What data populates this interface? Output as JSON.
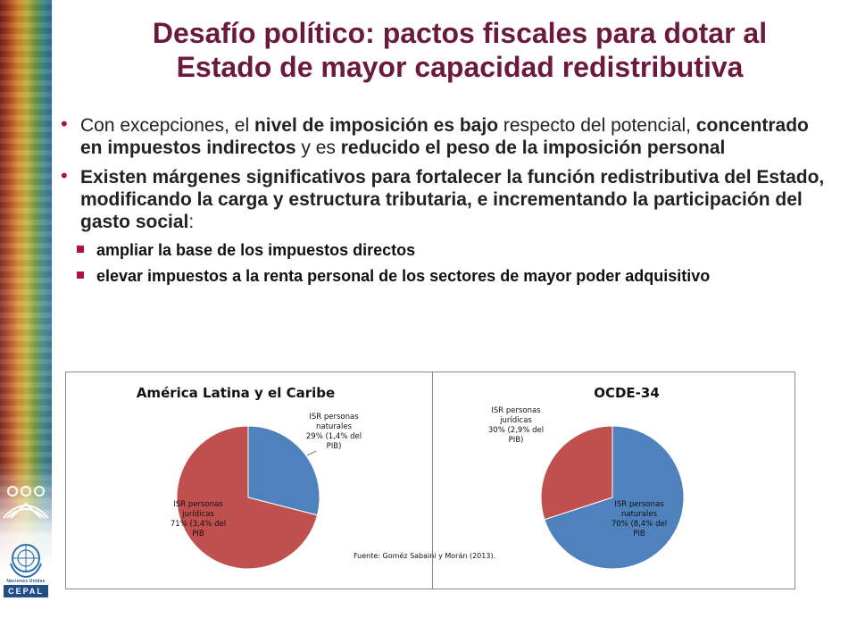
{
  "slide": {
    "title_line1": "Desafío político: pactos fiscales para dotar al",
    "title_line2": "Estado de mayor capacidad redistributiva",
    "bullets": [
      {
        "segments": [
          {
            "text": "Con excepciones, el ",
            "bold": false
          },
          {
            "text": "nivel de imposición es bajo",
            "bold": true
          },
          {
            "text": " respecto del potencial, ",
            "bold": false
          },
          {
            "text": "concentrado en impuestos indirectos",
            "bold": true
          },
          {
            "text": " y es ",
            "bold": false
          },
          {
            "text": "reducido el peso de la imposición personal",
            "bold": true
          }
        ]
      },
      {
        "segments": [
          {
            "text": " Existen márgenes significativos para fortalecer la función redistributiva del Estado, modificando la carga y estructura tributaria, e incrementando la participación del gasto social",
            "bold": true
          },
          {
            "text": ":",
            "bold": false
          }
        ]
      }
    ],
    "subbullets": [
      "ampliar la base de los impuestos directos",
      "elevar impuestos a la renta personal de los sectores de mayor poder adquisitivo"
    ],
    "branding": {
      "un_caption": "Naciones Unidas",
      "cepal": "CEPAL"
    }
  },
  "colors": {
    "title": "#6b1a3e",
    "bullet_marker": "#b0123a",
    "slice_blue": "#4f81bd",
    "slice_red": "#c0504d"
  },
  "chart_data": [
    {
      "type": "pie",
      "title": "América Latina y el Caribe",
      "slices": [
        {
          "label_lines": [
            "ISR personas",
            "naturales",
            "29% (1,4% del",
            "PIB)"
          ],
          "value": 29,
          "color": "#4f81bd"
        },
        {
          "label_lines": [
            "ISR personas",
            "jurídicas",
            "71% (3,4% del",
            "PIB"
          ],
          "value": 71,
          "color": "#c0504d"
        }
      ]
    },
    {
      "type": "pie",
      "title": "OCDE-34",
      "slices": [
        {
          "label_lines": [
            "ISR personas",
            "naturales",
            "70% (8,4% del",
            "PIB"
          ],
          "value": 70,
          "color": "#4f81bd"
        },
        {
          "label_lines": [
            "ISR personas",
            "jurídicas",
            "30% (2,9% del",
            "PIB)"
          ],
          "value": 30,
          "color": "#c0504d"
        }
      ]
    }
  ],
  "source_note": "Fuente: Goméz Sabaini y Morán (2013)."
}
